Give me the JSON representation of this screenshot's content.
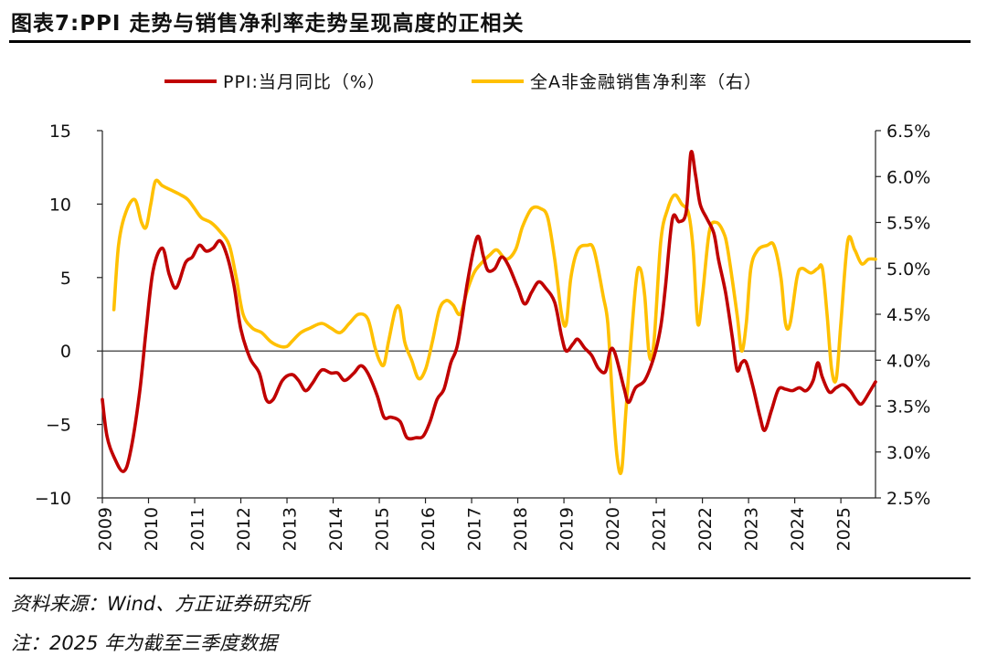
{
  "title": "图表7:PPI 走势与销售净利率走势呈现高度的正相关",
  "source": "资料来源：Wind、方正证券研究所",
  "footnote": "注：2025 年为截至三季度数据",
  "chart_data": {
    "type": "line",
    "title": "图表7:PPI 走势与销售净利率走势呈现高度的正相关",
    "x_range": [
      2009.0,
      2025.75
    ],
    "categories": [
      "2009",
      "2010",
      "2011",
      "2012",
      "2013",
      "2014",
      "2015",
      "2016",
      "2017",
      "2018",
      "2019",
      "2020",
      "2021",
      "2022",
      "2023",
      "2024",
      "2025"
    ],
    "y_left": {
      "ylim": [
        -10,
        15
      ],
      "ticks": [
        15,
        10,
        5,
        0,
        -5,
        -10
      ],
      "tick_labels": [
        "15",
        "10",
        "5",
        "0",
        "−5",
        "−10"
      ]
    },
    "y_right": {
      "ylim": [
        2.5,
        6.5
      ],
      "ticks": [
        6.5,
        6.0,
        5.5,
        5.0,
        4.5,
        4.0,
        3.5,
        3.0,
        2.5
      ],
      "tick_labels": [
        "6.5%",
        "6.0%",
        "5.5%",
        "5.0%",
        "4.5%",
        "4.0%",
        "3.5%",
        "3.0%",
        "2.5%"
      ]
    },
    "legend_position": "top-center",
    "series": [
      {
        "name": "PPI:当月同比（%）",
        "axis": "left",
        "color": "#c00000",
        "points": [
          [
            2009.0,
            -3.3
          ],
          [
            2009.1,
            -5.8
          ],
          [
            2009.25,
            -7.2
          ],
          [
            2009.45,
            -8.2
          ],
          [
            2009.6,
            -7.0
          ],
          [
            2009.8,
            -3.0
          ],
          [
            2009.95,
            1.5
          ],
          [
            2010.1,
            5.5
          ],
          [
            2010.3,
            7.0
          ],
          [
            2010.45,
            5.2
          ],
          [
            2010.6,
            4.3
          ],
          [
            2010.8,
            6.0
          ],
          [
            2010.95,
            6.4
          ],
          [
            2011.1,
            7.2
          ],
          [
            2011.25,
            6.8
          ],
          [
            2011.4,
            7.0
          ],
          [
            2011.55,
            7.5
          ],
          [
            2011.7,
            6.5
          ],
          [
            2011.85,
            4.5
          ],
          [
            2012.0,
            1.5
          ],
          [
            2012.2,
            -0.5
          ],
          [
            2012.4,
            -1.5
          ],
          [
            2012.55,
            -3.3
          ],
          [
            2012.7,
            -3.3
          ],
          [
            2012.9,
            -2.0
          ],
          [
            2013.1,
            -1.6
          ],
          [
            2013.25,
            -2.0
          ],
          [
            2013.4,
            -2.7
          ],
          [
            2013.55,
            -2.2
          ],
          [
            2013.75,
            -1.3
          ],
          [
            2013.95,
            -1.5
          ],
          [
            2014.1,
            -1.5
          ],
          [
            2014.25,
            -2.0
          ],
          [
            2014.45,
            -1.5
          ],
          [
            2014.6,
            -1.0
          ],
          [
            2014.75,
            -1.5
          ],
          [
            2014.95,
            -3.0
          ],
          [
            2015.1,
            -4.5
          ],
          [
            2015.25,
            -4.5
          ],
          [
            2015.45,
            -4.8
          ],
          [
            2015.6,
            -5.9
          ],
          [
            2015.8,
            -5.9
          ],
          [
            2015.95,
            -5.8
          ],
          [
            2016.1,
            -4.8
          ],
          [
            2016.25,
            -3.3
          ],
          [
            2016.4,
            -2.6
          ],
          [
            2016.55,
            -0.8
          ],
          [
            2016.7,
            0.5
          ],
          [
            2016.9,
            4.5
          ],
          [
            2017.05,
            7.0
          ],
          [
            2017.15,
            7.8
          ],
          [
            2017.25,
            6.5
          ],
          [
            2017.35,
            5.5
          ],
          [
            2017.5,
            5.6
          ],
          [
            2017.65,
            6.4
          ],
          [
            2017.8,
            5.8
          ],
          [
            2018.0,
            4.3
          ],
          [
            2018.15,
            3.2
          ],
          [
            2018.3,
            4.0
          ],
          [
            2018.45,
            4.7
          ],
          [
            2018.6,
            4.3
          ],
          [
            2018.8,
            3.3
          ],
          [
            2018.95,
            1.0
          ],
          [
            2019.05,
            0.0
          ],
          [
            2019.2,
            0.5
          ],
          [
            2019.3,
            0.8
          ],
          [
            2019.45,
            0.2
          ],
          [
            2019.6,
            -0.3
          ],
          [
            2019.75,
            -1.2
          ],
          [
            2019.9,
            -1.4
          ],
          [
            2020.0,
            0.0
          ],
          [
            2020.1,
            -0.1
          ],
          [
            2020.3,
            -2.5
          ],
          [
            2020.4,
            -3.5
          ],
          [
            2020.55,
            -2.5
          ],
          [
            2020.75,
            -2.0
          ],
          [
            2020.95,
            -0.4
          ],
          [
            2021.1,
            1.7
          ],
          [
            2021.2,
            4.4
          ],
          [
            2021.35,
            9.0
          ],
          [
            2021.5,
            8.8
          ],
          [
            2021.65,
            9.5
          ],
          [
            2021.75,
            13.5
          ],
          [
            2021.85,
            12.0
          ],
          [
            2021.95,
            10.0
          ],
          [
            2022.1,
            9.0
          ],
          [
            2022.25,
            8.0
          ],
          [
            2022.35,
            6.2
          ],
          [
            2022.5,
            4.0
          ],
          [
            2022.65,
            0.9
          ],
          [
            2022.75,
            -1.3
          ],
          [
            2022.85,
            -0.8
          ],
          [
            2022.95,
            -0.8
          ],
          [
            2023.1,
            -2.5
          ],
          [
            2023.25,
            -4.5
          ],
          [
            2023.35,
            -5.4
          ],
          [
            2023.5,
            -4.0
          ],
          [
            2023.65,
            -2.6
          ],
          [
            2023.8,
            -2.6
          ],
          [
            2023.95,
            -2.7
          ],
          [
            2024.1,
            -2.5
          ],
          [
            2024.25,
            -2.7
          ],
          [
            2024.4,
            -2.0
          ],
          [
            2024.5,
            -0.8
          ],
          [
            2024.6,
            -1.8
          ],
          [
            2024.75,
            -2.8
          ],
          [
            2024.9,
            -2.5
          ],
          [
            2025.05,
            -2.3
          ],
          [
            2025.2,
            -2.7
          ],
          [
            2025.35,
            -3.4
          ],
          [
            2025.45,
            -3.6
          ],
          [
            2025.6,
            -2.9
          ],
          [
            2025.75,
            -2.1
          ]
        ]
      },
      {
        "name": "全A非金融销售净利率（右）",
        "axis": "right",
        "color": "#ffc000",
        "points": [
          [
            2009.25,
            4.55
          ],
          [
            2009.35,
            5.25
          ],
          [
            2009.5,
            5.6
          ],
          [
            2009.7,
            5.75
          ],
          [
            2009.85,
            5.5
          ],
          [
            2009.95,
            5.45
          ],
          [
            2010.05,
            5.7
          ],
          [
            2010.15,
            5.95
          ],
          [
            2010.3,
            5.9
          ],
          [
            2010.5,
            5.85
          ],
          [
            2010.7,
            5.8
          ],
          [
            2010.85,
            5.75
          ],
          [
            2011.0,
            5.65
          ],
          [
            2011.15,
            5.55
          ],
          [
            2011.35,
            5.5
          ],
          [
            2011.55,
            5.4
          ],
          [
            2011.75,
            5.25
          ],
          [
            2011.9,
            4.9
          ],
          [
            2012.05,
            4.5
          ],
          [
            2012.25,
            4.35
          ],
          [
            2012.45,
            4.3
          ],
          [
            2012.65,
            4.2
          ],
          [
            2012.85,
            4.15
          ],
          [
            2013.0,
            4.15
          ],
          [
            2013.1,
            4.2
          ],
          [
            2013.3,
            4.3
          ],
          [
            2013.5,
            4.35
          ],
          [
            2013.75,
            4.4
          ],
          [
            2013.95,
            4.35
          ],
          [
            2014.15,
            4.3
          ],
          [
            2014.35,
            4.4
          ],
          [
            2014.55,
            4.5
          ],
          [
            2014.75,
            4.45
          ],
          [
            2014.9,
            4.15
          ],
          [
            2015.0,
            4.0
          ],
          [
            2015.1,
            3.95
          ],
          [
            2015.2,
            4.2
          ],
          [
            2015.35,
            4.55
          ],
          [
            2015.45,
            4.55
          ],
          [
            2015.55,
            4.2
          ],
          [
            2015.7,
            4.0
          ],
          [
            2015.85,
            3.8
          ],
          [
            2016.0,
            3.9
          ],
          [
            2016.15,
            4.2
          ],
          [
            2016.3,
            4.55
          ],
          [
            2016.45,
            4.65
          ],
          [
            2016.6,
            4.6
          ],
          [
            2016.75,
            4.5
          ],
          [
            2016.9,
            4.75
          ],
          [
            2017.05,
            4.95
          ],
          [
            2017.2,
            5.05
          ],
          [
            2017.4,
            5.15
          ],
          [
            2017.55,
            5.2
          ],
          [
            2017.75,
            5.1
          ],
          [
            2017.95,
            5.2
          ],
          [
            2018.1,
            5.45
          ],
          [
            2018.3,
            5.65
          ],
          [
            2018.5,
            5.65
          ],
          [
            2018.65,
            5.55
          ],
          [
            2018.8,
            5.1
          ],
          [
            2018.95,
            4.5
          ],
          [
            2019.05,
            4.4
          ],
          [
            2019.15,
            4.9
          ],
          [
            2019.3,
            5.2
          ],
          [
            2019.5,
            5.25
          ],
          [
            2019.65,
            5.2
          ],
          [
            2019.85,
            4.7
          ],
          [
            2019.95,
            4.4
          ],
          [
            2020.05,
            3.6
          ],
          [
            2020.15,
            2.95
          ],
          [
            2020.25,
            2.8
          ],
          [
            2020.35,
            3.5
          ],
          [
            2020.55,
            4.8
          ],
          [
            2020.65,
            5.0
          ],
          [
            2020.75,
            4.7
          ],
          [
            2020.85,
            4.05
          ],
          [
            2020.95,
            4.2
          ],
          [
            2021.1,
            5.3
          ],
          [
            2021.25,
            5.65
          ],
          [
            2021.4,
            5.8
          ],
          [
            2021.55,
            5.7
          ],
          [
            2021.7,
            5.6
          ],
          [
            2021.8,
            5.2
          ],
          [
            2021.9,
            4.4
          ],
          [
            2022.0,
            4.7
          ],
          [
            2022.15,
            5.4
          ],
          [
            2022.3,
            5.5
          ],
          [
            2022.45,
            5.4
          ],
          [
            2022.55,
            5.2
          ],
          [
            2022.75,
            4.5
          ],
          [
            2022.85,
            4.1
          ],
          [
            2022.95,
            4.4
          ],
          [
            2023.05,
            5.0
          ],
          [
            2023.2,
            5.2
          ],
          [
            2023.4,
            5.25
          ],
          [
            2023.55,
            5.25
          ],
          [
            2023.7,
            4.9
          ],
          [
            2023.8,
            4.4
          ],
          [
            2023.9,
            4.4
          ],
          [
            2024.05,
            4.9
          ],
          [
            2024.15,
            5.0
          ],
          [
            2024.35,
            4.95
          ],
          [
            2024.5,
            5.0
          ],
          [
            2024.6,
            5.0
          ],
          [
            2024.7,
            4.5
          ],
          [
            2024.8,
            3.9
          ],
          [
            2024.9,
            3.8
          ],
          [
            2025.0,
            4.4
          ],
          [
            2025.15,
            5.3
          ],
          [
            2025.3,
            5.2
          ],
          [
            2025.45,
            5.05
          ],
          [
            2025.6,
            5.1
          ],
          [
            2025.75,
            5.1
          ]
        ]
      }
    ]
  }
}
